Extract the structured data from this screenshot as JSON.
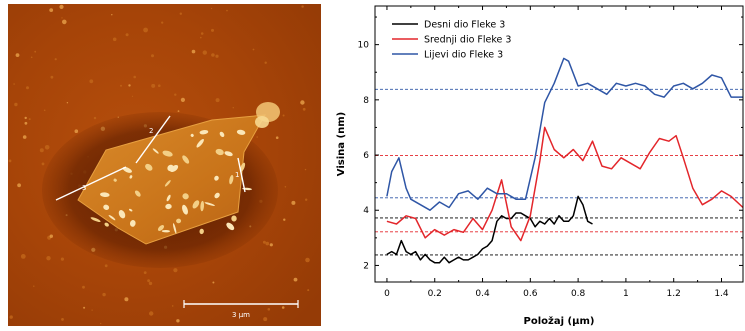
{
  "image_panel": {
    "scale_bar_label": "3 µm",
    "line_labels": [
      "1",
      "2",
      "3"
    ]
  },
  "chart_data": {
    "type": "line",
    "xlabel": "Položaj (µm)",
    "ylabel": "Visina (nm)",
    "xlim": [
      -0.05,
      1.49
    ],
    "ylim": [
      1.4,
      11.4
    ],
    "xticks": [
      0,
      0.2,
      0.4,
      0.6,
      0.8,
      1,
      1.2,
      1.4
    ],
    "xtick_labels": [
      "0",
      "0.2",
      "0.4",
      "0.6",
      "0.8",
      "1",
      "1.2",
      "1.4"
    ],
    "yticks": [
      2,
      4,
      6,
      8,
      10
    ],
    "ytick_labels": [
      "2",
      "4",
      "6",
      "8",
      "10"
    ],
    "legend_position": "top-left",
    "series": [
      {
        "name": "Desni dio Fleke 3",
        "color": "#000000",
        "x": [
          0.0,
          0.02,
          0.04,
          0.06,
          0.08,
          0.1,
          0.12,
          0.14,
          0.16,
          0.18,
          0.2,
          0.22,
          0.24,
          0.26,
          0.28,
          0.3,
          0.32,
          0.34,
          0.36,
          0.38,
          0.4,
          0.42,
          0.44,
          0.46,
          0.48,
          0.5,
          0.52,
          0.54,
          0.56,
          0.58,
          0.6,
          0.62,
          0.64,
          0.66,
          0.68,
          0.7,
          0.72,
          0.74,
          0.76,
          0.78,
          0.8,
          0.82,
          0.84,
          0.86
        ],
        "y": [
          2.4,
          2.5,
          2.4,
          2.9,
          2.5,
          2.4,
          2.5,
          2.2,
          2.4,
          2.2,
          2.1,
          2.1,
          2.3,
          2.1,
          2.2,
          2.3,
          2.2,
          2.2,
          2.3,
          2.4,
          2.6,
          2.7,
          2.9,
          3.6,
          3.8,
          3.7,
          3.7,
          3.9,
          3.9,
          3.8,
          3.7,
          3.4,
          3.6,
          3.5,
          3.7,
          3.5,
          3.8,
          3.6,
          3.6,
          3.8,
          4.5,
          4.2,
          3.6,
          3.5
        ]
      },
      {
        "name": "Srednji dio Fleke 3",
        "color": "#e3262b",
        "x": [
          0.0,
          0.04,
          0.08,
          0.12,
          0.16,
          0.2,
          0.24,
          0.28,
          0.32,
          0.36,
          0.4,
          0.44,
          0.48,
          0.52,
          0.56,
          0.6,
          0.64,
          0.66,
          0.7,
          0.74,
          0.78,
          0.82,
          0.86,
          0.9,
          0.94,
          0.98,
          1.02,
          1.06,
          1.1,
          1.14,
          1.18,
          1.21,
          1.24,
          1.28,
          1.32,
          1.36,
          1.4,
          1.44,
          1.49
        ],
        "y": [
          3.6,
          3.5,
          3.8,
          3.7,
          3.0,
          3.3,
          3.1,
          3.3,
          3.2,
          3.7,
          3.3,
          4.0,
          5.1,
          3.4,
          2.9,
          3.8,
          5.8,
          7.0,
          6.2,
          5.9,
          6.2,
          5.8,
          6.5,
          5.6,
          5.5,
          5.9,
          5.7,
          5.5,
          6.1,
          6.6,
          6.5,
          6.7,
          5.9,
          4.8,
          4.2,
          4.4,
          4.7,
          4.5,
          4.1
        ]
      },
      {
        "name": "Lijevi dio Fleke 3",
        "color": "#2f56a6",
        "x": [
          0.0,
          0.02,
          0.05,
          0.08,
          0.1,
          0.14,
          0.18,
          0.22,
          0.26,
          0.3,
          0.34,
          0.38,
          0.42,
          0.46,
          0.5,
          0.54,
          0.58,
          0.62,
          0.66,
          0.7,
          0.74,
          0.76,
          0.8,
          0.84,
          0.88,
          0.92,
          0.96,
          1.0,
          1.04,
          1.08,
          1.12,
          1.16,
          1.2,
          1.24,
          1.28,
          1.32,
          1.36,
          1.4,
          1.44,
          1.49
        ],
        "y": [
          4.5,
          5.4,
          5.9,
          4.8,
          4.4,
          4.2,
          4.0,
          4.3,
          4.1,
          4.6,
          4.7,
          4.4,
          4.8,
          4.6,
          4.6,
          4.4,
          4.4,
          5.9,
          7.9,
          8.6,
          9.5,
          9.4,
          8.5,
          8.6,
          8.4,
          8.2,
          8.6,
          8.5,
          8.6,
          8.5,
          8.2,
          8.1,
          8.5,
          8.6,
          8.4,
          8.6,
          8.9,
          8.8,
          8.1,
          8.1
        ]
      }
    ],
    "reference_lines": [
      {
        "y": 3.72,
        "color": "#000000"
      },
      {
        "y": 2.38,
        "color": "#000000"
      },
      {
        "y": 5.98,
        "color": "#e3262b"
      },
      {
        "y": 3.22,
        "color": "#e3262b"
      },
      {
        "y": 8.38,
        "color": "#2f56a6"
      },
      {
        "y": 4.45,
        "color": "#2f56a6"
      }
    ]
  }
}
